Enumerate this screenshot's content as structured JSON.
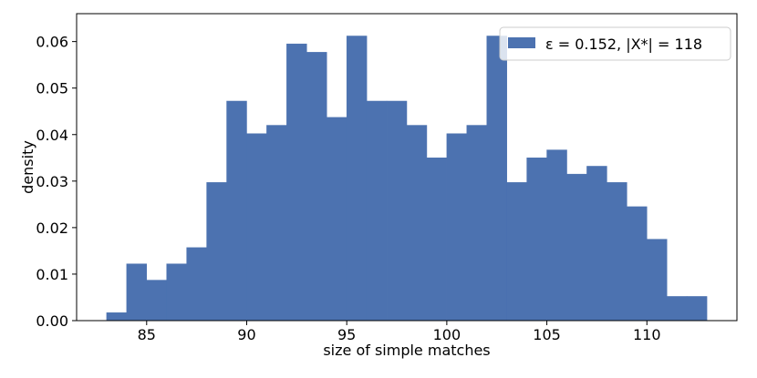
{
  "chart_data": {
    "type": "bar",
    "title": "",
    "xlabel": "size of simple matches",
    "ylabel": "density",
    "xlim": [
      81.5,
      114.5
    ],
    "ylim": [
      0,
      0.066
    ],
    "grid": false,
    "bin_width": 1,
    "color": "#4c72b0",
    "legend": {
      "placement": "top-right",
      "label": "ε = 0.152, |X*| = 118"
    },
    "x_ticks": [
      85,
      90,
      95,
      100,
      105,
      110
    ],
    "x_tick_labels": [
      "85",
      "90",
      "95",
      "100",
      "105",
      "110"
    ],
    "y_ticks": [
      0.0,
      0.01,
      0.02,
      0.03,
      0.04,
      0.05,
      0.06
    ],
    "y_tick_labels": [
      "0.00",
      "0.01",
      "0.02",
      "0.03",
      "0.04",
      "0.05",
      "0.06"
    ],
    "bins": [
      {
        "start": 83,
        "value": 0.0017
      },
      {
        "start": 84,
        "value": 0.0122
      },
      {
        "start": 85,
        "value": 0.0087
      },
      {
        "start": 86,
        "value": 0.0122
      },
      {
        "start": 87,
        "value": 0.0157
      },
      {
        "start": 88,
        "value": 0.0297
      },
      {
        "start": 89,
        "value": 0.0472
      },
      {
        "start": 90,
        "value": 0.0402
      },
      {
        "start": 91,
        "value": 0.042
      },
      {
        "start": 92,
        "value": 0.0595
      },
      {
        "start": 93,
        "value": 0.0577
      },
      {
        "start": 94,
        "value": 0.0437
      },
      {
        "start": 95,
        "value": 0.0612
      },
      {
        "start": 96,
        "value": 0.0472
      },
      {
        "start": 97,
        "value": 0.0472
      },
      {
        "start": 98,
        "value": 0.042
      },
      {
        "start": 99,
        "value": 0.035
      },
      {
        "start": 100,
        "value": 0.0402
      },
      {
        "start": 101,
        "value": 0.042
      },
      {
        "start": 102,
        "value": 0.0612
      },
      {
        "start": 103,
        "value": 0.0297
      },
      {
        "start": 104,
        "value": 0.035
      },
      {
        "start": 105,
        "value": 0.0367
      },
      {
        "start": 106,
        "value": 0.0315
      },
      {
        "start": 107,
        "value": 0.0332
      },
      {
        "start": 108,
        "value": 0.0297
      },
      {
        "start": 109,
        "value": 0.0245
      },
      {
        "start": 110,
        "value": 0.0175
      },
      {
        "start": 111,
        "value": 0.0052
      },
      {
        "start": 112,
        "value": 0.0052
      }
    ]
  }
}
